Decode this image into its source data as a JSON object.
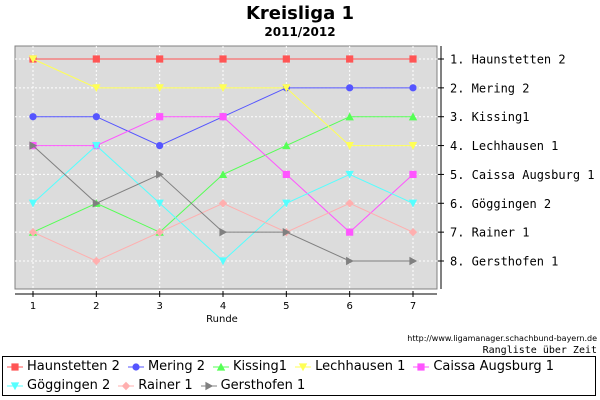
{
  "chart_data": {
    "type": "line",
    "title": "Kreisliga 1",
    "subtitle": "2011/2012",
    "xlabel": "Runde",
    "x": [
      1,
      2,
      3,
      4,
      5,
      6,
      7
    ],
    "ylim": [
      1,
      8
    ],
    "y_inverted": true,
    "grid": true,
    "legend_position": "bottom",
    "y_tick_labels": [
      "1. Haunstetten 2",
      "2. Mering 2",
      "3. Kissing1",
      "4. Lechhausen 1",
      "5. Caissa Augsburg 1",
      "6. Göggingen 2",
      "7. Rainer  1",
      "8. Gersthofen 1"
    ],
    "series": [
      {
        "name": "Haunstetten 2",
        "color": "#ff5555",
        "marker": "square",
        "values": [
          1,
          1,
          1,
          1,
          1,
          1,
          1
        ]
      },
      {
        "name": "Mering 2",
        "color": "#5555ff",
        "marker": "circle",
        "values": [
          3,
          3,
          4,
          3,
          2,
          2,
          2
        ]
      },
      {
        "name": "Kissing1",
        "color": "#55ff55",
        "marker": "triangle-up",
        "values": [
          7,
          6,
          7,
          5,
          4,
          3,
          3
        ]
      },
      {
        "name": "Lechhausen 1",
        "color": "#ffff55",
        "marker": "triangle-down",
        "values": [
          1,
          2,
          2,
          2,
          2,
          4,
          4
        ]
      },
      {
        "name": "Caissa Augsburg 1",
        "color": "#ff55ff",
        "marker": "square",
        "values": [
          4,
          4,
          3,
          3,
          5,
          7,
          5
        ]
      },
      {
        "name": "Göggingen 2",
        "color": "#55ffff",
        "marker": "triangle-down",
        "values": [
          6,
          4,
          6,
          8,
          6,
          5,
          6
        ]
      },
      {
        "name": "Rainer  1",
        "color": "#ffafaf",
        "marker": "diamond",
        "values": [
          7,
          8,
          7,
          6,
          7,
          6,
          7
        ]
      },
      {
        "name": "Gersthofen 1",
        "color": "#808080",
        "marker": "triangle-right",
        "values": [
          4,
          6,
          5,
          7,
          7,
          8,
          8
        ]
      }
    ]
  },
  "footer": {
    "source_url": "http://www.ligamanager.schachbund-bayern.de",
    "caption": "Rangliste über Zeit"
  }
}
